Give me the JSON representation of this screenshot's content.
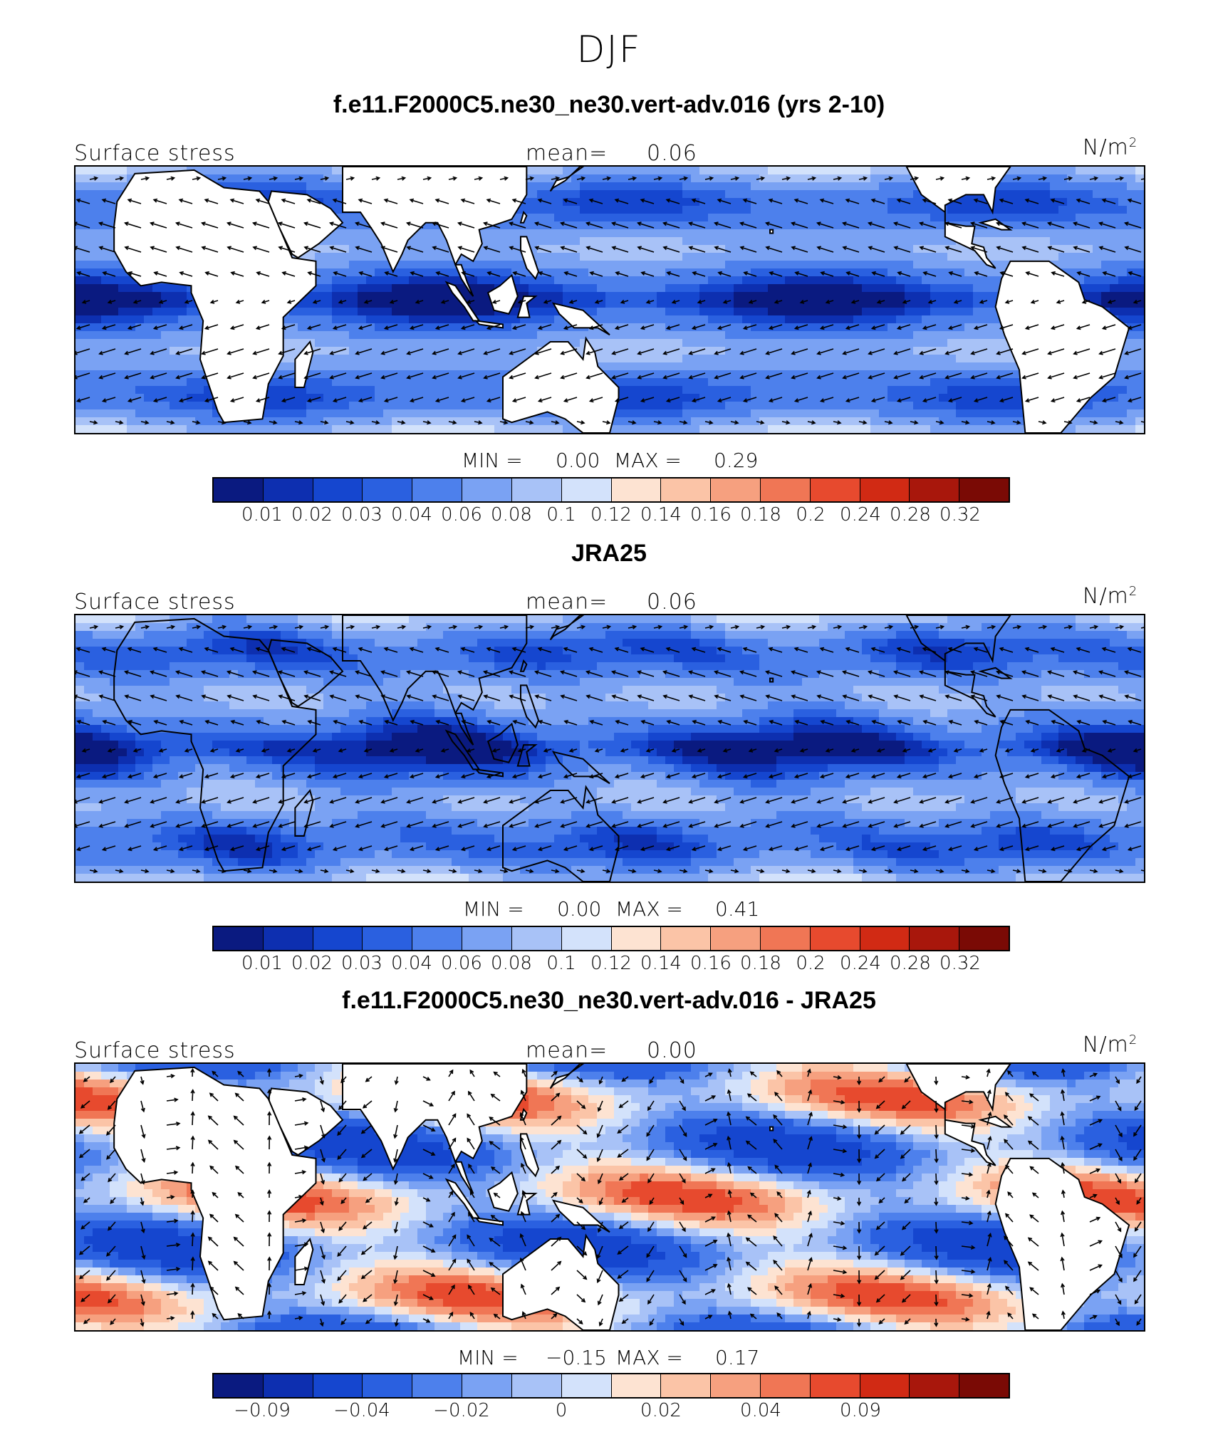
{
  "figure_title": "DJF",
  "colors": {
    "palette": [
      "#0a1a80",
      "#0d2fb0",
      "#1546cf",
      "#2a60e0",
      "#4d80ec",
      "#7aa2f3",
      "#a8c2f7",
      "#d3e2fb",
      "#fde3d2",
      "#fbc4a7",
      "#f6a07f",
      "#f07655",
      "#e74a2e",
      "#d12a14",
      "#a8170c",
      "#7a0a05"
    ],
    "land": "#ffffff",
    "coast": "#000000"
  },
  "panels": [
    {
      "title": "f.e11.F2000C5.ne30_ne30.vert-adv.016 (yrs 2-10)",
      "left_label": "Surface stress",
      "mean_label": "mean=",
      "mean_value": "0.06",
      "units_base": "N/m",
      "units_exp": "2",
      "min_label": "MIN =",
      "min_value": "0.00",
      "max_label": "MAX =",
      "max_value": "0.29",
      "colorbar_ticks": [
        "0.01",
        "0.02",
        "0.03",
        "0.04",
        "0.06",
        "0.08",
        "0.1",
        "0.12",
        "0.14",
        "0.16",
        "0.18",
        "0.2",
        "0.24",
        "0.28",
        "0.32"
      ],
      "field": "magnitude"
    },
    {
      "title": "JRA25",
      "left_label": "Surface stress",
      "mean_label": "mean=",
      "mean_value": "0.06",
      "units_base": "N/m",
      "units_exp": "2",
      "min_label": "MIN =",
      "min_value": "0.00",
      "max_label": "MAX =",
      "max_value": "0.41",
      "colorbar_ticks": [
        "0.01",
        "0.02",
        "0.03",
        "0.04",
        "0.06",
        "0.08",
        "0.1",
        "0.12",
        "0.14",
        "0.16",
        "0.18",
        "0.2",
        "0.24",
        "0.28",
        "0.32"
      ],
      "field": "magnitude"
    },
    {
      "title": "f.e11.F2000C5.ne30_ne30.vert-adv.016 - JRA25",
      "left_label": "Surface stress",
      "mean_label": "mean=",
      "mean_value": "0.00",
      "units_base": "N/m",
      "units_exp": "2",
      "min_label": "MIN =",
      "min_value": "−0.15",
      "max_label": "MAX =",
      "max_value": "0.17",
      "colorbar_ticks": [
        "−0.09",
        "",
        "−0.04",
        "",
        "−0.02",
        "",
        "0",
        "",
        "0.02",
        "",
        "0.04",
        "",
        "0.09",
        "",
        ""
      ],
      "field": "difference"
    }
  ]
}
